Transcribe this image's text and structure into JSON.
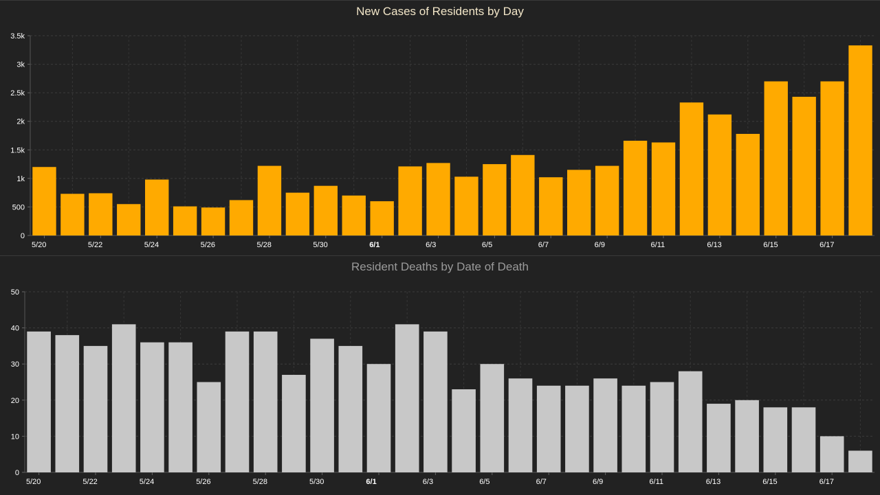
{
  "chart_data": [
    {
      "type": "bar",
      "title": "New Cases of Residents by Day",
      "color": "#ffaa00",
      "categories": [
        "5/20",
        "5/21",
        "5/22",
        "5/23",
        "5/24",
        "5/25",
        "5/26",
        "5/27",
        "5/28",
        "5/29",
        "5/30",
        "5/31",
        "6/1",
        "6/2",
        "6/3",
        "6/4",
        "6/5",
        "6/6",
        "6/7",
        "6/8",
        "6/9",
        "6/10",
        "6/11",
        "6/12",
        "6/13",
        "6/14",
        "6/15",
        "6/16",
        "6/17",
        "6/18"
      ],
      "values": [
        1200,
        730,
        740,
        550,
        980,
        510,
        490,
        620,
        1220,
        750,
        870,
        700,
        600,
        1210,
        1270,
        1030,
        1250,
        1410,
        1020,
        1150,
        1220,
        1660,
        1630,
        2330,
        2120,
        1780,
        2700,
        2430,
        2700,
        3330
      ],
      "x_tick_labels": [
        "5/20",
        "5/22",
        "5/24",
        "5/26",
        "5/28",
        "5/30",
        "6/1",
        "6/3",
        "6/5",
        "6/7",
        "6/9",
        "6/11",
        "6/13",
        "6/15",
        "6/17"
      ],
      "y_ticks": [
        "0",
        "500",
        "1k",
        "1.5k",
        "2k",
        "2.5k",
        "3k",
        "3.5k"
      ],
      "ylim": [
        0,
        3500
      ],
      "grid": true
    },
    {
      "type": "bar",
      "title": "Resident Deaths by Date of Death",
      "color": "#c8c8c8",
      "categories": [
        "5/20",
        "5/21",
        "5/22",
        "5/23",
        "5/24",
        "5/25",
        "5/26",
        "5/27",
        "5/28",
        "5/29",
        "5/30",
        "5/31",
        "6/1",
        "6/2",
        "6/3",
        "6/4",
        "6/5",
        "6/6",
        "6/7",
        "6/8",
        "6/9",
        "6/10",
        "6/11",
        "6/12",
        "6/13",
        "6/14",
        "6/15",
        "6/16",
        "6/17",
        "6/18"
      ],
      "values": [
        39,
        38,
        35,
        41,
        36,
        36,
        25,
        39,
        39,
        27,
        37,
        35,
        30,
        41,
        39,
        23,
        30,
        26,
        24,
        24,
        26,
        24,
        25,
        28,
        19,
        20,
        18,
        18,
        10,
        6
      ],
      "x_tick_labels": [
        "5/20",
        "5/22",
        "5/24",
        "5/26",
        "5/28",
        "5/30",
        "6/1",
        "6/3",
        "6/5",
        "6/7",
        "6/9",
        "6/11",
        "6/13",
        "6/15",
        "6/17"
      ],
      "y_ticks": [
        "0",
        "10",
        "20",
        "30",
        "40",
        "50"
      ],
      "ylim": [
        0,
        50
      ],
      "grid": true
    }
  ]
}
